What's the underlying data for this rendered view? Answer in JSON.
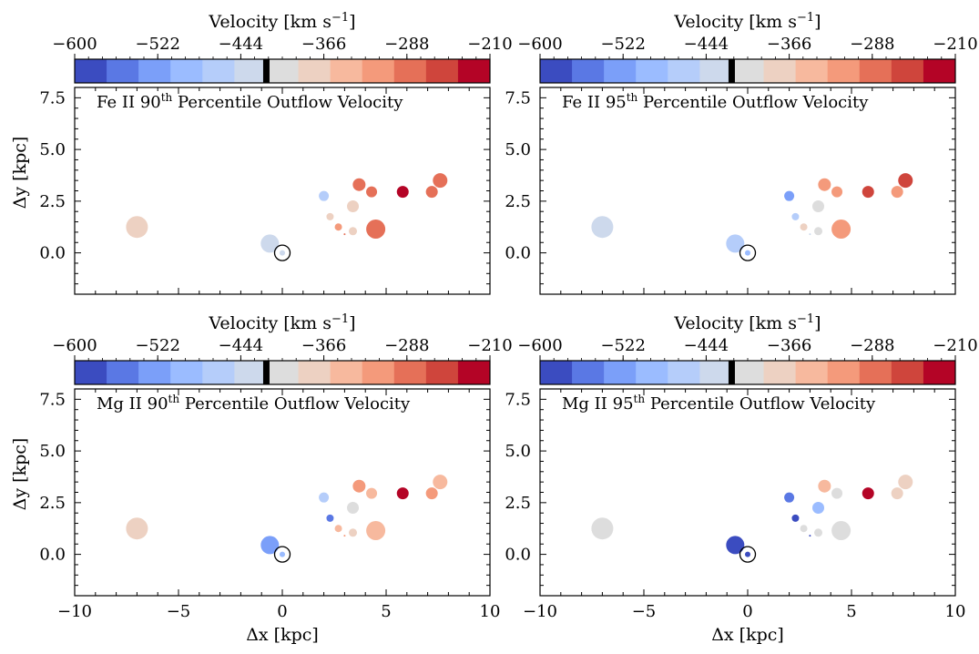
{
  "figure": {
    "colorbar_label": "Velocity [km s",
    "colorbar_label_exp": "−1",
    "colorbar_label_close": "]",
    "colorbar_ticks": [
      "−600",
      "−522",
      "−444",
      "−366",
      "−288",
      "−210"
    ],
    "colorbar_colors": [
      "#3b4cc0",
      "#5a78e4",
      "#7b9ff9",
      "#9bbcff",
      "#b5cdfa",
      "#cdd9ec",
      "#dddddd",
      "#edd1c2",
      "#f7b99e",
      "#f49a7b",
      "#e57058",
      "#cf453c",
      "#b40426"
    ],
    "x_ticks": [
      "−10",
      "−5",
      "0",
      "5",
      "10"
    ],
    "y_ticks": [
      "7.5",
      "5.0",
      "2.5",
      "0.0"
    ],
    "xlabel": "Δx [kpc]",
    "ylabel": "Δy [kpc]"
  },
  "chart_data": [
    {
      "type": "scatter",
      "title": "Fe II 90",
      "title_sup": "th",
      "title_rest": " Percentile Outflow Velocity",
      "xlabel": "Δx [kpc]",
      "ylabel": "Δy [kpc]",
      "xlim": [
        -10,
        10
      ],
      "ylim": [
        -2,
        8
      ],
      "colorbar": {
        "label": "Velocity [km s−1]",
        "vmin": -600,
        "vmax": -210,
        "ticks": [
          -600,
          -522,
          -444,
          -366,
          -288,
          -210
        ]
      },
      "points": [
        {
          "x": -7.0,
          "y": 1.25,
          "size": 12,
          "color": "#edd1c2"
        },
        {
          "x": -0.6,
          "y": 0.45,
          "size": 10,
          "color": "#cdd9ec"
        },
        {
          "x": 0.0,
          "y": 0.0,
          "size": 3,
          "color": "#cdd9ec"
        },
        {
          "x": 2.0,
          "y": 2.75,
          "size": 5.5,
          "color": "#b5cdfa"
        },
        {
          "x": 2.3,
          "y": 1.75,
          "size": 4,
          "color": "#edd1c2"
        },
        {
          "x": 2.7,
          "y": 1.25,
          "size": 4,
          "color": "#f49a7b"
        },
        {
          "x": 3.0,
          "y": 0.9,
          "size": 1,
          "color": "#e57058"
        },
        {
          "x": 3.4,
          "y": 2.25,
          "size": 6.5,
          "color": "#edd1c2"
        },
        {
          "x": 3.4,
          "y": 1.05,
          "size": 4.5,
          "color": "#edd1c2"
        },
        {
          "x": 3.7,
          "y": 3.3,
          "size": 7,
          "color": "#e57058"
        },
        {
          "x": 4.3,
          "y": 2.95,
          "size": 6,
          "color": "#e57058"
        },
        {
          "x": 4.5,
          "y": 1.15,
          "size": 10.5,
          "color": "#e57058"
        },
        {
          "x": 5.8,
          "y": 2.95,
          "size": 6.5,
          "color": "#b40426"
        },
        {
          "x": 7.2,
          "y": 2.95,
          "size": 6.5,
          "color": "#e57058"
        },
        {
          "x": 7.6,
          "y": 3.5,
          "size": 8,
          "color": "#e57058"
        }
      ]
    },
    {
      "type": "scatter",
      "title": "Fe II 95",
      "title_sup": "th",
      "title_rest": " Percentile Outflow Velocity",
      "xlabel": "Δx [kpc]",
      "ylabel": "Δy [kpc]",
      "xlim": [
        -10,
        10
      ],
      "ylim": [
        -2,
        8
      ],
      "colorbar": {
        "label": "Velocity [km s−1]",
        "vmin": -600,
        "vmax": -210,
        "ticks": [
          -600,
          -522,
          -444,
          -366,
          -288,
          -210
        ]
      },
      "points": [
        {
          "x": -7.0,
          "y": 1.25,
          "size": 12,
          "color": "#cdd9ec"
        },
        {
          "x": -0.6,
          "y": 0.45,
          "size": 10,
          "color": "#b5cdfa"
        },
        {
          "x": 0.0,
          "y": 0.0,
          "size": 3,
          "color": "#9bbcff"
        },
        {
          "x": 2.0,
          "y": 2.75,
          "size": 5.5,
          "color": "#7b9ff9"
        },
        {
          "x": 2.3,
          "y": 1.75,
          "size": 4,
          "color": "#b5cdfa"
        },
        {
          "x": 2.7,
          "y": 1.25,
          "size": 4,
          "color": "#edd1c2"
        },
        {
          "x": 3.0,
          "y": 0.9,
          "size": 1,
          "color": "#cdd9ec"
        },
        {
          "x": 3.4,
          "y": 2.25,
          "size": 6.5,
          "color": "#dddddd"
        },
        {
          "x": 3.4,
          "y": 1.05,
          "size": 4.5,
          "color": "#dddddd"
        },
        {
          "x": 3.7,
          "y": 3.3,
          "size": 7,
          "color": "#f49a7b"
        },
        {
          "x": 4.3,
          "y": 2.95,
          "size": 6,
          "color": "#f49a7b"
        },
        {
          "x": 4.5,
          "y": 1.15,
          "size": 10.5,
          "color": "#f49a7b"
        },
        {
          "x": 5.8,
          "y": 2.95,
          "size": 6.5,
          "color": "#cf453c"
        },
        {
          "x": 7.2,
          "y": 2.95,
          "size": 6.5,
          "color": "#f49a7b"
        },
        {
          "x": 7.6,
          "y": 3.5,
          "size": 8,
          "color": "#cf453c"
        }
      ]
    },
    {
      "type": "scatter",
      "title": "Mg II 90",
      "title_sup": "th",
      "title_rest": " Percentile Outflow Velocity",
      "xlabel": "Δx [kpc]",
      "ylabel": "Δy [kpc]",
      "xlim": [
        -10,
        10
      ],
      "ylim": [
        -2,
        8
      ],
      "colorbar": {
        "label": "Velocity [km s−1]",
        "vmin": -600,
        "vmax": -210,
        "ticks": [
          -600,
          -522,
          -444,
          -366,
          -288,
          -210
        ]
      },
      "points": [
        {
          "x": -7.0,
          "y": 1.25,
          "size": 12,
          "color": "#edd1c2"
        },
        {
          "x": -0.6,
          "y": 0.45,
          "size": 10,
          "color": "#7b9ff9"
        },
        {
          "x": 0.0,
          "y": 0.0,
          "size": 3,
          "color": "#9bbcff"
        },
        {
          "x": 2.0,
          "y": 2.75,
          "size": 5.5,
          "color": "#b5cdfa"
        },
        {
          "x": 2.3,
          "y": 1.75,
          "size": 4,
          "color": "#5a78e4"
        },
        {
          "x": 2.7,
          "y": 1.25,
          "size": 4,
          "color": "#f7b99e"
        },
        {
          "x": 3.0,
          "y": 0.9,
          "size": 1,
          "color": "#f49a7b"
        },
        {
          "x": 3.4,
          "y": 2.25,
          "size": 6.5,
          "color": "#dddddd"
        },
        {
          "x": 3.4,
          "y": 1.05,
          "size": 4.5,
          "color": "#edd1c2"
        },
        {
          "x": 3.7,
          "y": 3.3,
          "size": 7,
          "color": "#f49a7b"
        },
        {
          "x": 4.3,
          "y": 2.95,
          "size": 6,
          "color": "#f7b99e"
        },
        {
          "x": 4.5,
          "y": 1.15,
          "size": 10.5,
          "color": "#f7b99e"
        },
        {
          "x": 5.8,
          "y": 2.95,
          "size": 6.5,
          "color": "#b40426"
        },
        {
          "x": 7.2,
          "y": 2.95,
          "size": 6.5,
          "color": "#f49a7b"
        },
        {
          "x": 7.6,
          "y": 3.5,
          "size": 8,
          "color": "#f7b99e"
        }
      ]
    },
    {
      "type": "scatter",
      "title": "Mg II 95",
      "title_sup": "th",
      "title_rest": " Percentile Outflow Velocity",
      "xlabel": "Δx [kpc]",
      "ylabel": "Δy [kpc]",
      "xlim": [
        -10,
        10
      ],
      "ylim": [
        -2,
        8
      ],
      "colorbar": {
        "label": "Velocity [km s−1]",
        "vmin": -600,
        "vmax": -210,
        "ticks": [
          -600,
          -522,
          -444,
          -366,
          -288,
          -210
        ]
      },
      "points": [
        {
          "x": -7.0,
          "y": 1.25,
          "size": 12,
          "color": "#dddddd"
        },
        {
          "x": -0.6,
          "y": 0.45,
          "size": 10,
          "color": "#3b4cc0"
        },
        {
          "x": 0.0,
          "y": 0.0,
          "size": 3,
          "color": "#3b4cc0"
        },
        {
          "x": 2.0,
          "y": 2.75,
          "size": 5.5,
          "color": "#5a78e4"
        },
        {
          "x": 2.3,
          "y": 1.75,
          "size": 4,
          "color": "#3b4cc0"
        },
        {
          "x": 2.7,
          "y": 1.25,
          "size": 4,
          "color": "#dddddd"
        },
        {
          "x": 3.0,
          "y": 0.9,
          "size": 1,
          "color": "#3b4cc0"
        },
        {
          "x": 3.4,
          "y": 2.25,
          "size": 6.5,
          "color": "#9bbcff"
        },
        {
          "x": 3.4,
          "y": 1.05,
          "size": 4.5,
          "color": "#dddddd"
        },
        {
          "x": 3.7,
          "y": 3.3,
          "size": 7,
          "color": "#f7b99e"
        },
        {
          "x": 4.3,
          "y": 2.95,
          "size": 6,
          "color": "#dddddd"
        },
        {
          "x": 4.5,
          "y": 1.15,
          "size": 10.5,
          "color": "#dddddd"
        },
        {
          "x": 5.8,
          "y": 2.95,
          "size": 6.5,
          "color": "#b40426"
        },
        {
          "x": 7.2,
          "y": 2.95,
          "size": 6.5,
          "color": "#edd1c2"
        },
        {
          "x": 7.6,
          "y": 3.5,
          "size": 8,
          "color": "#edd1c2"
        }
      ]
    }
  ]
}
